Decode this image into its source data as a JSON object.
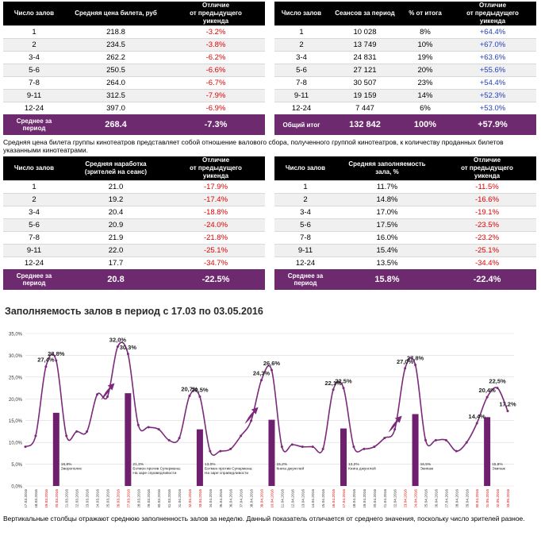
{
  "colors": {
    "header_bg": "#000000",
    "footer_bg": "#6e2a6e",
    "line": "#7b2a7b",
    "bar": "#6e1f6e",
    "negative": "#e00000",
    "positive": "#1f3fbf",
    "grid": "#d9d9d9"
  },
  "table1": {
    "headers": [
      "Число залов",
      "Средняя цена билета, руб",
      "Отличие\nот предыдущего\nуикенда"
    ],
    "rows": [
      [
        "1",
        "218.8",
        "-3.2%"
      ],
      [
        "2",
        "234.5",
        "-3.8%"
      ],
      [
        "3-4",
        "262.2",
        "-6.2%"
      ],
      [
        "5-6",
        "250.5",
        "-6.6%"
      ],
      [
        "7-8",
        "264.0",
        "-6.7%"
      ],
      [
        "9-11",
        "312.5",
        "-7.9%"
      ],
      [
        "12-24",
        "397.0",
        "-6.9%"
      ]
    ],
    "footer": [
      "Среднее за\nпериод",
      "268.4",
      "-7.3%"
    ]
  },
  "table2": {
    "headers": [
      "Число залов",
      "Сеансов за период",
      "% от итога",
      "Отличие\nот предыдущего\nуикенда"
    ],
    "rows": [
      [
        "1",
        "10 028",
        "8%",
        "+64.4%"
      ],
      [
        "2",
        "13 749",
        "10%",
        "+67.0%"
      ],
      [
        "3-4",
        "24 831",
        "19%",
        "+63.6%"
      ],
      [
        "5-6",
        "27 121",
        "20%",
        "+55.6%"
      ],
      [
        "7-8",
        "30 507",
        "23%",
        "+54.4%"
      ],
      [
        "9-11",
        "19 159",
        "14%",
        "+52.3%"
      ],
      [
        "12-24",
        "7 447",
        "6%",
        "+53.0%"
      ]
    ],
    "footer": [
      "Общий итог",
      "132 842",
      "100%",
      "+57.9%"
    ]
  },
  "note_top": "Средняя цена билета группы кинотеатров представляет собой отношение валового сбора, полученного группой кинотеатров, к количеству проданных билетов указанными кинотеатрами.",
  "table3": {
    "headers": [
      "Число залов",
      "Средняя наработка\n(зрителей на сеанс)",
      "Отличие\nот предыдущего\nуикенда"
    ],
    "rows": [
      [
        "1",
        "21.0",
        "-17.9%"
      ],
      [
        "2",
        "19.2",
        "-17.4%"
      ],
      [
        "3-4",
        "20.4",
        "-18.8%"
      ],
      [
        "5-6",
        "20.9",
        "-24.0%"
      ],
      [
        "7-8",
        "21.9",
        "-21.8%"
      ],
      [
        "9-11",
        "22.0",
        "-25.1%"
      ],
      [
        "12-24",
        "17.7",
        "-34.7%"
      ]
    ],
    "footer": [
      "Среднее за\nпериод",
      "20.8",
      "-22.5%"
    ]
  },
  "table4": {
    "headers": [
      "Число залов",
      "Средняя заполняемость\nзала, %",
      "Отличие\nот предыдущего\nуикенда"
    ],
    "rows": [
      [
        "1",
        "11.7%",
        "-11.5%"
      ],
      [
        "2",
        "14.8%",
        "-16.6%"
      ],
      [
        "3-4",
        "17.0%",
        "-19.1%"
      ],
      [
        "5-6",
        "17.5%",
        "-23.5%"
      ],
      [
        "7-8",
        "16.0%",
        "-23.2%"
      ],
      [
        "9-11",
        "15.4%",
        "-25.1%"
      ],
      [
        "12-24",
        "13.5%",
        "-34.4%"
      ]
    ],
    "footer": [
      "Среднее за\nпериод",
      "15.8%",
      "-22.4%"
    ]
  },
  "chart_title": "Заполняемость залов в период с 17.03 по 03.05.2016",
  "note_bottom": "Вертикальные столбцы отражают среднюю заполненность залов за неделю. Данный показатель отличается от среднего значения, поскольку число зрителей разное.",
  "chart_data": {
    "type": "line",
    "title": "Заполняемость залов в период с 17.03 по 03.05.2016",
    "ylim": [
      0,
      35
    ],
    "yticks": [
      "0,0%",
      "5,0%",
      "10,0%",
      "15,0%",
      "20,0%",
      "25,0%",
      "30,0%",
      "35,0%"
    ],
    "x": [
      "17.03.2016",
      "18.03.2016",
      "19.03.2016",
      "20.03.2016",
      "21.03.2016",
      "22.03.2016",
      "23.03.2016",
      "24.03.2016",
      "25.03.2016",
      "26.03.2016",
      "27.03.2016",
      "28.03.2016",
      "29.03.2016",
      "30.03.2016",
      "31.03.2016",
      "01.04.2016",
      "02.04.2016",
      "03.04.2016",
      "04.04.2016",
      "05.04.2016",
      "06.04.2016",
      "07.04.2016",
      "08.04.2016",
      "09.04.2016",
      "10.04.2016",
      "11.04.2016",
      "12.04.2016",
      "13.04.2016",
      "14.04.2016",
      "15.04.2016",
      "16.04.2016",
      "17.04.2016",
      "18.04.2016",
      "19.04.2016",
      "20.04.2016",
      "21.04.2016",
      "22.04.2016",
      "23.04.2016",
      "24.04.2016",
      "25.04.2016",
      "26.04.2016",
      "27.04.2016",
      "28.04.2016",
      "29.04.2016",
      "30.04.2016",
      "01.05.2016",
      "02.05.2016",
      "03.05.2016"
    ],
    "weekend": [
      false,
      false,
      true,
      true,
      false,
      false,
      false,
      false,
      false,
      true,
      true,
      false,
      false,
      false,
      false,
      false,
      true,
      true,
      false,
      false,
      false,
      false,
      false,
      true,
      true,
      false,
      false,
      false,
      false,
      false,
      true,
      true,
      false,
      false,
      false,
      false,
      false,
      true,
      true,
      false,
      false,
      false,
      false,
      false,
      true,
      true,
      true,
      true
    ],
    "line": [
      9.0,
      11.5,
      27.4,
      28.8,
      11.5,
      12.5,
      12.5,
      21.0,
      20.5,
      32.0,
      30.3,
      14.0,
      13.5,
      13.0,
      10.5,
      11.0,
      20.7,
      20.5,
      8.0,
      8.0,
      8.5,
      11.5,
      15.0,
      24.3,
      26.6,
      9.0,
      9.5,
      9.0,
      9.0,
      8.5,
      22.1,
      22.5,
      9.0,
      8.5,
      9.0,
      11.0,
      13.0,
      27.0,
      27.8,
      10.5,
      10.5,
      10.5,
      8.0,
      10.0,
      14.4,
      20.4,
      22.5,
      17.2
    ],
    "point_labels": [
      {
        "i": 2,
        "text": "27,4%"
      },
      {
        "i": 3,
        "text": "28,8%"
      },
      {
        "i": 9,
        "text": "32,0%"
      },
      {
        "i": 10,
        "text": "30,3%"
      },
      {
        "i": 16,
        "text": "20,7%"
      },
      {
        "i": 17,
        "text": "20,5%"
      },
      {
        "i": 23,
        "text": "24,3%"
      },
      {
        "i": 24,
        "text": "26,6%"
      },
      {
        "i": 30,
        "text": "22,1%"
      },
      {
        "i": 31,
        "text": "22,5%"
      },
      {
        "i": 37,
        "text": "27,0%"
      },
      {
        "i": 38,
        "text": "27,8%"
      },
      {
        "i": 44,
        "text": "14,4%"
      },
      {
        "i": 45,
        "text": "20,4%"
      },
      {
        "i": 46,
        "text": "22,5%"
      },
      {
        "i": 47,
        "text": "17,2%"
      }
    ],
    "bars": [
      {
        "i": 3,
        "value": 16.8,
        "label": "16,8%\nЗверополис"
      },
      {
        "i": 10,
        "value": 21.3,
        "label": "21,3%\nБэтмен против Супермена:\nНа заре справедливости"
      },
      {
        "i": 17,
        "value": 13.0,
        "label": "13,0%\nБэтмен против Супермена:\nНа заре справедливости"
      },
      {
        "i": 24,
        "value": 15.2,
        "label": "15,2%\nКнига джунглей"
      },
      {
        "i": 31,
        "value": 13.2,
        "label": "13,2%\nКнига джунглей"
      },
      {
        "i": 38,
        "value": 16.5,
        "label": "16,5%\nЭкипаж"
      },
      {
        "i": 45,
        "value": 15.8,
        "label": "15,8%\nЭкипаж"
      }
    ],
    "arrows": [
      8,
      22,
      36
    ]
  }
}
